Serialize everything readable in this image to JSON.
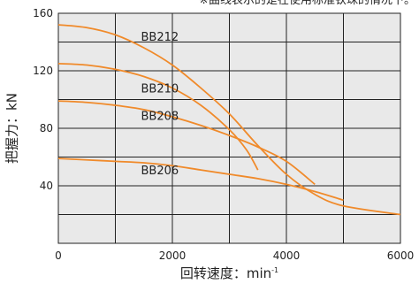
{
  "chart_data": {
    "type": "line",
    "note": "※曲线表示的是在使用标准钦珠的情况下。",
    "xlabel_main": "回转速度：min",
    "xlabel_sup": "-1",
    "ylabel": "把握力：kN",
    "xlim": [
      0,
      6000
    ],
    "ylim": [
      0,
      160
    ],
    "x_ticks": [
      "0",
      "2000",
      "4000",
      "6000"
    ],
    "y_ticks": [
      "40",
      "80",
      "120",
      "160"
    ],
    "x_grid_step": 1000,
    "y_grid_step": 20,
    "grid": true,
    "series": [
      {
        "name": "BB212",
        "color": "#f08a2a",
        "points": [
          [
            0,
            152
          ],
          [
            500,
            150
          ],
          [
            1000,
            145
          ],
          [
            1500,
            136
          ],
          [
            2000,
            124
          ],
          [
            2500,
            108
          ],
          [
            3000,
            90
          ],
          [
            3500,
            68
          ],
          [
            4000,
            48
          ],
          [
            4500,
            34
          ],
          [
            5000,
            26
          ],
          [
            6000,
            20
          ]
        ]
      },
      {
        "name": "BB210",
        "color": "#f08a2a",
        "points": [
          [
            0,
            125
          ],
          [
            500,
            124
          ],
          [
            1000,
            121
          ],
          [
            1500,
            116
          ],
          [
            2000,
            108
          ],
          [
            2500,
            96
          ],
          [
            3000,
            79
          ],
          [
            3300,
            65
          ],
          [
            3500,
            51
          ]
        ]
      },
      {
        "name": "BB208",
        "color": "#f08a2a",
        "points": [
          [
            0,
            99
          ],
          [
            500,
            98
          ],
          [
            1000,
            96
          ],
          [
            1500,
            93
          ],
          [
            2000,
            88
          ],
          [
            2500,
            82
          ],
          [
            3000,
            75
          ],
          [
            3500,
            67
          ],
          [
            4000,
            57
          ],
          [
            4500,
            41
          ]
        ]
      },
      {
        "name": "BB206",
        "color": "#f08a2a",
        "points": [
          [
            0,
            59
          ],
          [
            500,
            58
          ],
          [
            1000,
            57
          ],
          [
            1500,
            56
          ],
          [
            2000,
            54
          ],
          [
            2500,
            51
          ],
          [
            3000,
            48
          ],
          [
            3500,
            45
          ],
          [
            4000,
            41
          ],
          [
            4500,
            36
          ],
          [
            5000,
            30
          ]
        ]
      }
    ],
    "series_labels": [
      {
        "text": "BB212",
        "x": 1450,
        "y": 141
      },
      {
        "text": "BB210",
        "x": 1450,
        "y": 105
      },
      {
        "text": "BB208",
        "x": 1450,
        "y": 86
      },
      {
        "text": "BB206",
        "x": 1450,
        "y": 48
      }
    ]
  }
}
